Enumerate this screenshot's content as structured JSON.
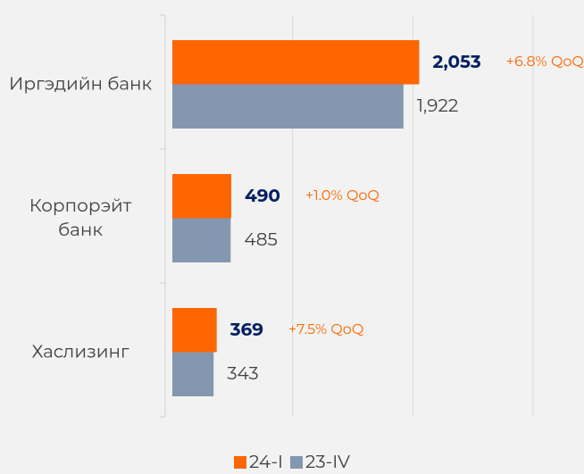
{
  "chart_data": {
    "type": "barh",
    "categories": [
      "Иргэдийн банк",
      "Корпорэйт банк",
      "Хаслизинг"
    ],
    "series": [
      {
        "name": "24-I",
        "color": "#ff6600",
        "values": [
          2053,
          490,
          369
        ],
        "value_labels": [
          "2,053",
          "490",
          "369"
        ]
      },
      {
        "name": "23-IV",
        "color": "#8497b0",
        "values": [
          1922,
          485,
          343
        ],
        "value_labels": [
          "1,922",
          "485",
          "343"
        ]
      }
    ],
    "annotations": [
      "+6.8% QoQ",
      "+1.0% QoQ",
      "+7.5% QoQ"
    ],
    "xlim": [
      0,
      3000
    ],
    "xticks": [
      0,
      1000,
      2000,
      3000
    ],
    "grid": true,
    "legend": "bottom"
  }
}
